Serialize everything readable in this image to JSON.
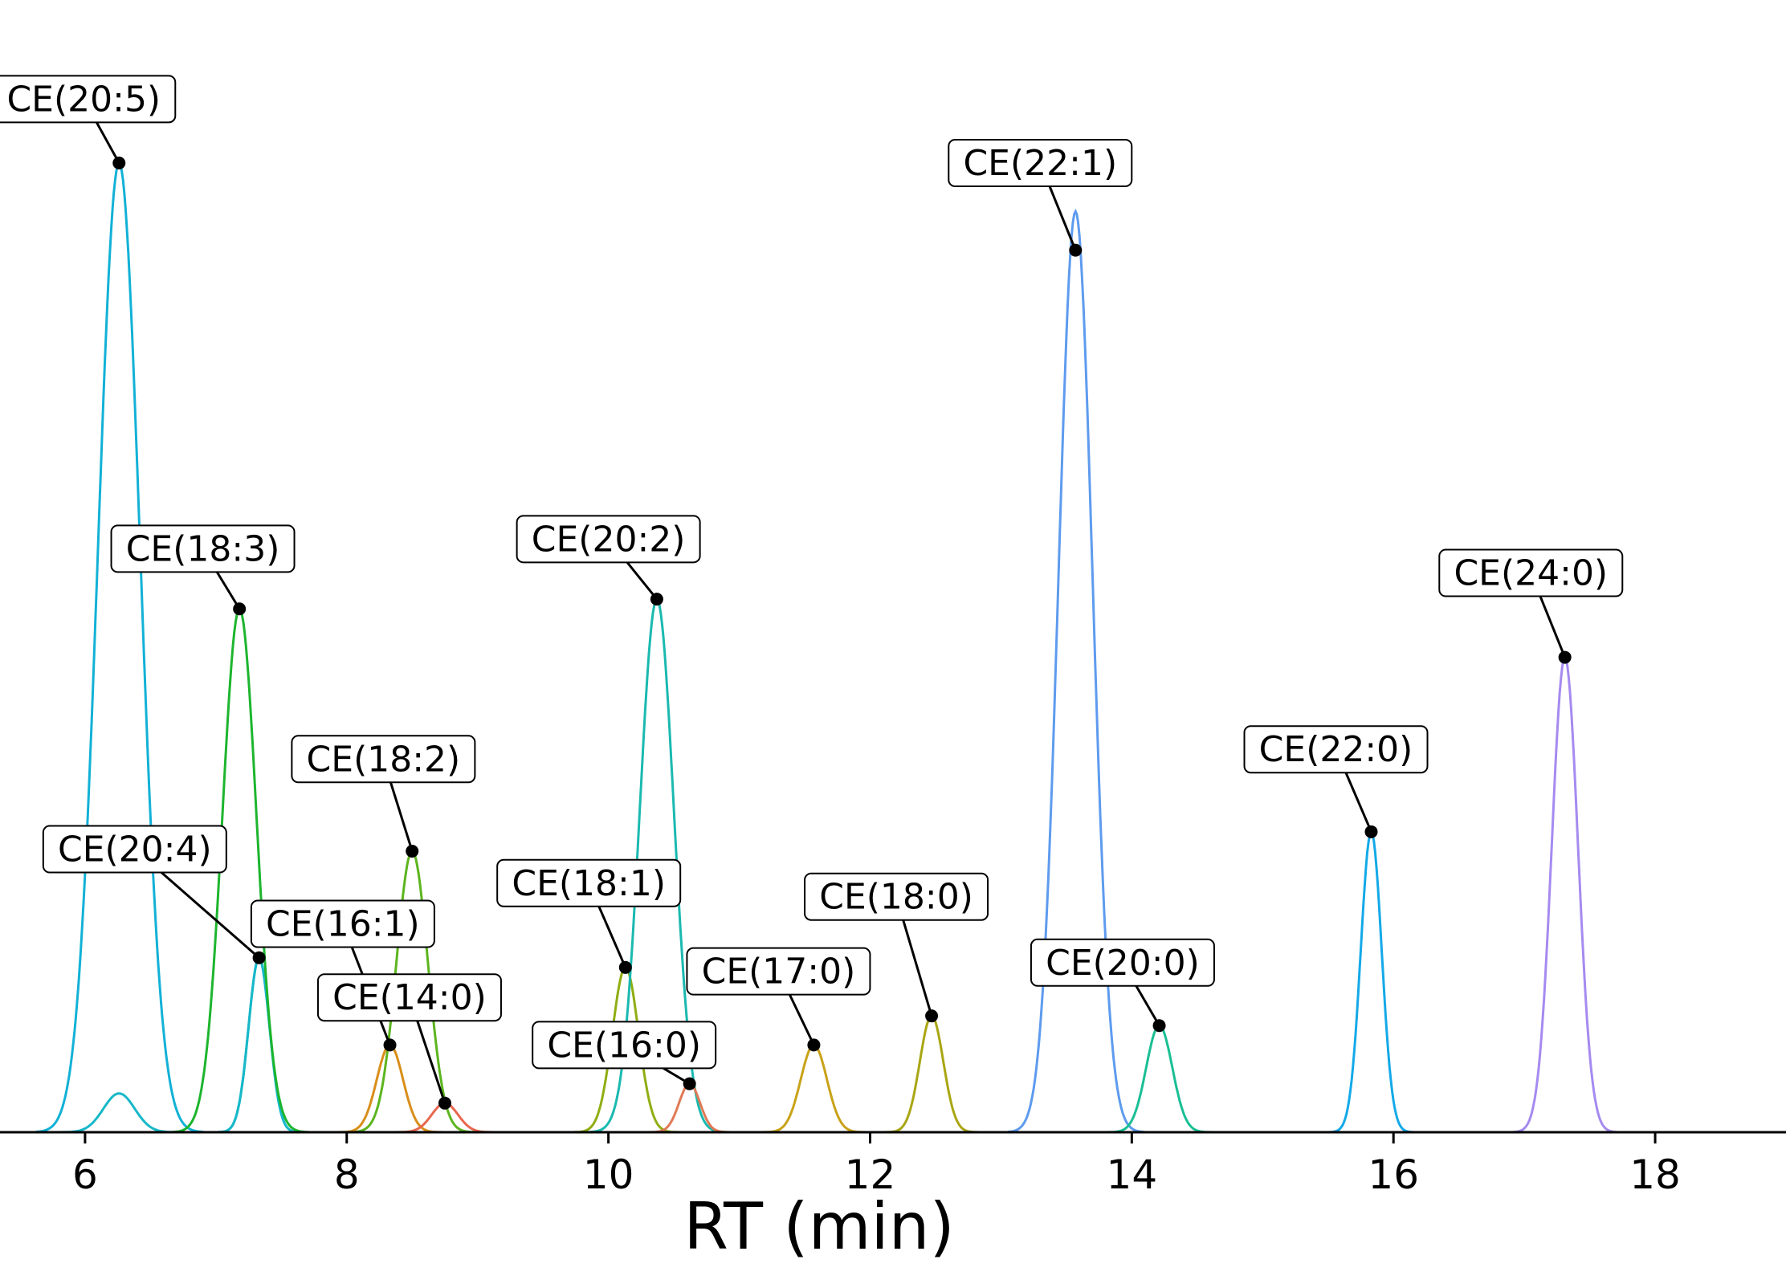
{
  "chart_data": {
    "type": "line",
    "title": "",
    "xlabel": "RT (min)",
    "ylabel": "",
    "xlim": [
      5.35,
      19.0
    ],
    "ylim": [
      0,
      1.0
    ],
    "xticks": [
      6,
      8,
      10,
      12,
      14,
      16,
      18
    ],
    "grid": false,
    "legend": "none",
    "series": [
      {
        "label": "CE(20:5)",
        "color": "#12b1d6",
        "peaks": [
          {
            "rt": 6.26,
            "height": 1.0,
            "sigma": 0.16
          },
          {
            "rt": 7.33,
            "height": 0.18,
            "sigma": 0.08
          }
        ]
      },
      {
        "label": "CE(20:4)",
        "color": "#17b8c8",
        "peaks": [
          {
            "rt": 7.33,
            "height": 0.18,
            "sigma": 0.08
          },
          {
            "rt": 6.26,
            "height": 0.04,
            "sigma": 0.12
          }
        ]
      },
      {
        "label": "CE(18:3)",
        "color": "#1db52e",
        "peaks": [
          {
            "rt": 7.18,
            "height": 0.54,
            "sigma": 0.13
          }
        ]
      },
      {
        "label": "CE(18:2)",
        "color": "#5cb51e",
        "peaks": [
          {
            "rt": 8.5,
            "height": 0.29,
            "sigma": 0.12
          }
        ]
      },
      {
        "label": "CE(16:1)",
        "color": "#d98e1a",
        "peaks": [
          {
            "rt": 8.33,
            "height": 0.09,
            "sigma": 0.1
          }
        ]
      },
      {
        "label": "CE(14:0)",
        "color": "#e8674f",
        "peaks": [
          {
            "rt": 8.75,
            "height": 0.03,
            "sigma": 0.1
          }
        ]
      },
      {
        "label": "CE(18:1)",
        "color": "#8fae12",
        "peaks": [
          {
            "rt": 10.13,
            "height": 0.17,
            "sigma": 0.1
          }
        ]
      },
      {
        "label": "CE(20:2)",
        "color": "#1ab9b0",
        "peaks": [
          {
            "rt": 10.37,
            "height": 0.55,
            "sigma": 0.13
          }
        ]
      },
      {
        "label": "CE(16:0)",
        "color": "#e07a55",
        "peaks": [
          {
            "rt": 10.62,
            "height": 0.05,
            "sigma": 0.08
          }
        ]
      },
      {
        "label": "CE(17:0)",
        "color": "#c9a218",
        "peaks": [
          {
            "rt": 11.57,
            "height": 0.09,
            "sigma": 0.1
          }
        ]
      },
      {
        "label": "CE(18:0)",
        "color": "#a9a613",
        "peaks": [
          {
            "rt": 12.47,
            "height": 0.12,
            "sigma": 0.09
          }
        ]
      },
      {
        "label": "CE(22:1)",
        "color": "#5e9bee",
        "peaks": [
          {
            "rt": 13.57,
            "height": 0.91,
            "sigma": 0.13
          },
          {
            "rt": 13.57,
            "height": 0.04,
            "sigma": 0.12
          }
        ]
      },
      {
        "label": "CE(20:0)",
        "color": "#19bf94",
        "peaks": [
          {
            "rt": 14.21,
            "height": 0.11,
            "sigma": 0.1
          }
        ]
      },
      {
        "label": "CE(22:0)",
        "color": "#13a9e8",
        "peaks": [
          {
            "rt": 15.83,
            "height": 0.31,
            "sigma": 0.08
          }
        ]
      },
      {
        "label": "CE(24:0)",
        "color": "#a68af0",
        "peaks": [
          {
            "rt": 17.31,
            "height": 0.49,
            "sigma": 0.1
          }
        ]
      }
    ],
    "annotations": [
      {
        "label": "CE(20:5)",
        "x": 6.26,
        "y": 1.0,
        "label_x": 5.99,
        "label_y": 1.066
      },
      {
        "label": "CE(18:3)",
        "x": 7.18,
        "y": 0.54,
        "label_x": 6.9,
        "label_y": 0.602
      },
      {
        "label": "CE(20:4)",
        "x": 7.33,
        "y": 0.18,
        "label_x": 6.38,
        "label_y": 0.292
      },
      {
        "label": "CE(18:2)",
        "x": 8.5,
        "y": 0.29,
        "label_x": 8.28,
        "label_y": 0.385
      },
      {
        "label": "CE(16:1)",
        "x": 8.33,
        "y": 0.09,
        "label_x": 7.97,
        "label_y": 0.215
      },
      {
        "label": "CE(14:0)",
        "x": 8.75,
        "y": 0.03,
        "label_x": 8.48,
        "label_y": 0.139
      },
      {
        "label": "CE(20:2)",
        "x": 10.37,
        "y": 0.55,
        "label_x": 10.0,
        "label_y": 0.612
      },
      {
        "label": "CE(18:1)",
        "x": 10.13,
        "y": 0.17,
        "label_x": 9.85,
        "label_y": 0.257
      },
      {
        "label": "CE(16:0)",
        "x": 10.62,
        "y": 0.05,
        "label_x": 10.12,
        "label_y": 0.09
      },
      {
        "label": "CE(17:0)",
        "x": 11.57,
        "y": 0.09,
        "label_x": 11.3,
        "label_y": 0.166
      },
      {
        "label": "CE(18:0)",
        "x": 12.47,
        "y": 0.12,
        "label_x": 12.2,
        "label_y": 0.243
      },
      {
        "label": "CE(22:1)",
        "x": 13.57,
        "y": 0.91,
        "label_x": 13.3,
        "label_y": 1.0
      },
      {
        "label": "CE(20:0)",
        "x": 14.21,
        "y": 0.11,
        "label_x": 13.93,
        "label_y": 0.175
      },
      {
        "label": "CE(22:0)",
        "x": 15.83,
        "y": 0.31,
        "label_x": 15.56,
        "label_y": 0.395
      },
      {
        "label": "CE(24:0)",
        "x": 17.31,
        "y": 0.49,
        "label_x": 17.05,
        "label_y": 0.577
      }
    ]
  }
}
